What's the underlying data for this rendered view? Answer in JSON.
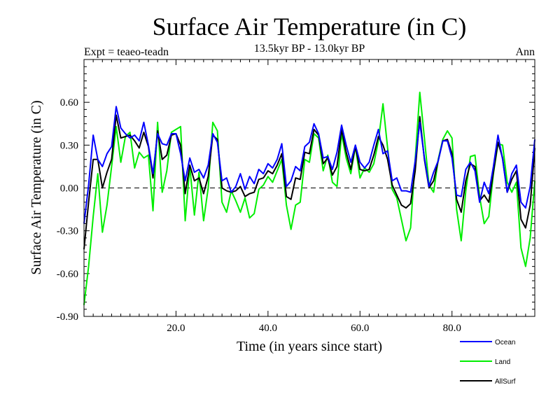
{
  "chart_data": {
    "type": "line",
    "title": "Surface Air Temperature (in C)",
    "subtitle": "13.5kyr BP - 13.0kyr BP",
    "expt_label": "Expt = teaeo-teadn",
    "period_label": "Ann",
    "xlabel": "Time (in years since start)",
    "ylabel": "Surface Air Temperature (in C)",
    "xlim": [
      0,
      98
    ],
    "ylim": [
      -0.9,
      0.9
    ],
    "x_ticks": [
      20,
      40,
      60,
      80
    ],
    "x_tick_labels": [
      "20.0",
      "40.0",
      "60.0",
      "80.0"
    ],
    "y_ticks": [
      -0.9,
      -0.6,
      -0.3,
      0.0,
      0.3,
      0.6
    ],
    "y_tick_labels": [
      "-0.90",
      "-0.60",
      "-0.30",
      "0.00",
      "0.30",
      "0.60"
    ],
    "reference_line": 0.0,
    "series": [
      {
        "name": "Ocean",
        "color": "#0000ff",
        "values": [
          -0.25,
          0.02,
          0.37,
          0.2,
          0.15,
          0.24,
          0.29,
          0.57,
          0.42,
          0.38,
          0.35,
          0.37,
          0.33,
          0.46,
          0.3,
          0.1,
          0.38,
          0.31,
          0.3,
          0.38,
          0.38,
          0.24,
          0.05,
          0.21,
          0.11,
          0.13,
          0.07,
          0.16,
          0.38,
          0.32,
          0.05,
          0.07,
          -0.03,
          0.01,
          0.1,
          -0.01,
          0.08,
          0.03,
          0.13,
          0.1,
          0.17,
          0.14,
          0.2,
          0.31,
          0.01,
          0.05,
          0.15,
          0.12,
          0.29,
          0.32,
          0.45,
          0.38,
          0.21,
          0.22,
          0.13,
          0.25,
          0.44,
          0.3,
          0.18,
          0.3,
          0.18,
          0.14,
          0.18,
          0.3,
          0.41,
          0.24,
          0.26,
          0.05,
          0.07,
          -0.02,
          -0.02,
          -0.03,
          0.19,
          0.46,
          0.21,
          0.01,
          0.11,
          0.19,
          0.33,
          0.33,
          0.21,
          -0.05,
          -0.06,
          0.13,
          0.18,
          0.12,
          -0.1,
          0.04,
          -0.04,
          0.15,
          0.37,
          0.2,
          -0.03,
          0.1,
          0.16,
          -0.1,
          -0.14,
          0.01,
          0.34
        ]
      },
      {
        "name": "Land",
        "color": "#00ee00",
        "values": [
          -0.82,
          -0.55,
          -0.2,
          0.1,
          -0.31,
          -0.12,
          0.15,
          0.43,
          0.18,
          0.36,
          0.39,
          0.14,
          0.25,
          0.21,
          0.23,
          -0.16,
          0.46,
          -0.03,
          0.12,
          0.39,
          0.41,
          0.43,
          -0.23,
          0.15,
          -0.19,
          0.11,
          -0.23,
          0.0,
          0.46,
          0.4,
          -0.1,
          -0.17,
          -0.02,
          -0.09,
          -0.17,
          -0.07,
          -0.21,
          -0.18,
          -0.01,
          0.02,
          0.08,
          0.04,
          0.12,
          0.2,
          -0.12,
          -0.29,
          -0.12,
          -0.1,
          0.2,
          0.18,
          0.38,
          0.35,
          0.12,
          0.23,
          0.04,
          0.01,
          0.38,
          0.21,
          0.1,
          0.29,
          0.07,
          0.14,
          0.11,
          0.17,
          0.33,
          0.59,
          0.28,
          -0.01,
          -0.07,
          -0.22,
          -0.37,
          -0.28,
          0.2,
          0.67,
          0.35,
          0.02,
          -0.03,
          0.2,
          0.34,
          0.4,
          0.35,
          -0.15,
          -0.37,
          -0.02,
          0.22,
          0.23,
          -0.06,
          -0.25,
          -0.2,
          0.1,
          0.31,
          0.3,
          0.04,
          -0.03,
          0.04,
          -0.42,
          -0.55,
          -0.35,
          0.05
        ]
      },
      {
        "name": "AllSurf",
        "color": "#000000",
        "values": [
          -0.43,
          -0.1,
          0.2,
          0.2,
          0.0,
          0.11,
          0.2,
          0.51,
          0.35,
          0.36,
          0.37,
          0.33,
          0.28,
          0.39,
          0.29,
          0.07,
          0.4,
          0.2,
          0.23,
          0.37,
          0.38,
          0.3,
          -0.04,
          0.16,
          0.05,
          0.07,
          -0.04,
          0.08,
          0.37,
          0.34,
          0.0,
          -0.02,
          -0.03,
          -0.02,
          0.01,
          -0.06,
          -0.04,
          -0.03,
          0.06,
          0.07,
          0.12,
          0.1,
          0.16,
          0.24,
          -0.06,
          -0.08,
          0.07,
          0.06,
          0.25,
          0.24,
          0.41,
          0.37,
          0.17,
          0.21,
          0.09,
          0.15,
          0.41,
          0.25,
          0.13,
          0.29,
          0.13,
          0.12,
          0.13,
          0.23,
          0.36,
          0.3,
          0.2,
          0.02,
          -0.05,
          -0.12,
          -0.14,
          -0.11,
          0.12,
          0.5,
          0.2,
          0.0,
          0.05,
          0.19,
          0.33,
          0.34,
          0.24,
          -0.08,
          -0.17,
          0.05,
          0.17,
          0.15,
          -0.09,
          -0.05,
          -0.1,
          0.11,
          0.32,
          0.21,
          -0.03,
          0.06,
          0.12,
          -0.22,
          -0.28,
          -0.12,
          0.28
        ]
      }
    ],
    "legend_position": "bottom-right"
  }
}
